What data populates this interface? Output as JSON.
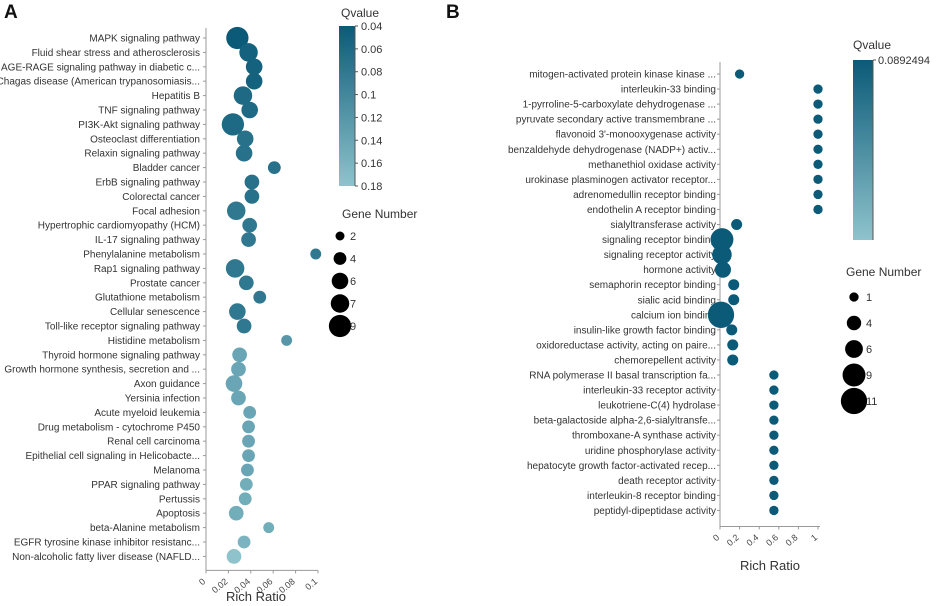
{
  "chart_data": [
    {
      "panel": "A",
      "type": "scatter",
      "xlabel": "Rich Ratio",
      "xlim": [
        0,
        0.1
      ],
      "x_ticks": [
        "0",
        "0.02",
        "0.04",
        "0.06",
        "0.08",
        "0.1"
      ],
      "qvalue_title": "Qvalue",
      "qvalue_ticks": [
        "0.04",
        "0.06",
        "0.08",
        "0.1",
        "0.12",
        "0.14",
        "0.16",
        "0.18"
      ],
      "qvalue_range": [
        0.04,
        0.18
      ],
      "size_title": "Gene Number",
      "size_legend": [
        "2",
        "4",
        "6",
        "7",
        "9"
      ],
      "points": [
        {
          "label": "MAPK signaling pathway",
          "x": 0.028,
          "size": 9,
          "q": 0.04
        },
        {
          "label": "Fluid shear stress and atherosclerosis",
          "x": 0.038,
          "size": 7,
          "q": 0.05
        },
        {
          "label": "AGE-RAGE signaling pathway in diabetic c...",
          "x": 0.043,
          "size": 6,
          "q": 0.05
        },
        {
          "label": "Chagas disease (American trypanosomiasis...",
          "x": 0.043,
          "size": 6,
          "q": 0.05
        },
        {
          "label": "Hepatitis B",
          "x": 0.033,
          "size": 7,
          "q": 0.06
        },
        {
          "label": "TNF signaling pathway",
          "x": 0.039,
          "size": 6,
          "q": 0.06
        },
        {
          "label": "PI3K-Akt signaling pathway",
          "x": 0.024,
          "size": 9,
          "q": 0.06
        },
        {
          "label": "Osteoclast differentiation",
          "x": 0.035,
          "size": 6,
          "q": 0.07
        },
        {
          "label": "Relaxin signaling pathway",
          "x": 0.034,
          "size": 6,
          "q": 0.07
        },
        {
          "label": "Bladder cancer",
          "x": 0.061,
          "size": 4,
          "q": 0.07
        },
        {
          "label": "ErbB signaling pathway",
          "x": 0.041,
          "size": 5,
          "q": 0.07
        },
        {
          "label": "Colorectal cancer",
          "x": 0.041,
          "size": 5,
          "q": 0.07
        },
        {
          "label": "Focal adhesion",
          "x": 0.027,
          "size": 7,
          "q": 0.08
        },
        {
          "label": "Hypertrophic cardiomyopathy (HCM)",
          "x": 0.039,
          "size": 5,
          "q": 0.08
        },
        {
          "label": "IL-17 signaling pathway",
          "x": 0.038,
          "size": 5,
          "q": 0.08
        },
        {
          "label": "Phenylalanine metabolism",
          "x": 0.098,
          "size": 3,
          "q": 0.08
        },
        {
          "label": "Rap1 signaling pathway",
          "x": 0.026,
          "size": 7,
          "q": 0.08
        },
        {
          "label": "Prostate cancer",
          "x": 0.036,
          "size": 5,
          "q": 0.08
        },
        {
          "label": "Glutathione metabolism",
          "x": 0.048,
          "size": 4,
          "q": 0.08
        },
        {
          "label": "Cellular senescence",
          "x": 0.028,
          "size": 6,
          "q": 0.08
        },
        {
          "label": "Toll-like receptor signaling pathway",
          "x": 0.034,
          "size": 5,
          "q": 0.08
        },
        {
          "label": "Histidine metabolism",
          "x": 0.072,
          "size": 3,
          "q": 0.12
        },
        {
          "label": "Thyroid hormone signaling pathway",
          "x": 0.03,
          "size": 5,
          "q": 0.14
        },
        {
          "label": "Growth hormone synthesis, secretion and ...",
          "x": 0.029,
          "size": 5,
          "q": 0.14
        },
        {
          "label": "Axon guidance",
          "x": 0.025,
          "size": 6,
          "q": 0.14
        },
        {
          "label": "Yersinia infection",
          "x": 0.029,
          "size": 5,
          "q": 0.14
        },
        {
          "label": "Acute myeloid leukemia",
          "x": 0.039,
          "size": 4,
          "q": 0.14
        },
        {
          "label": "Drug metabolism - cytochrome P450",
          "x": 0.038,
          "size": 4,
          "q": 0.14
        },
        {
          "label": "Renal cell carcinoma",
          "x": 0.038,
          "size": 4,
          "q": 0.14
        },
        {
          "label": "Epithelial cell signaling in Helicobacte...",
          "x": 0.038,
          "size": 4,
          "q": 0.14
        },
        {
          "label": "Melanoma",
          "x": 0.037,
          "size": 4,
          "q": 0.14
        },
        {
          "label": "PPAR signaling pathway",
          "x": 0.036,
          "size": 4,
          "q": 0.15
        },
        {
          "label": "Pertussis",
          "x": 0.035,
          "size": 4,
          "q": 0.15
        },
        {
          "label": "Apoptosis",
          "x": 0.027,
          "size": 5,
          "q": 0.15
        },
        {
          "label": "beta-Alanine metabolism",
          "x": 0.056,
          "size": 3,
          "q": 0.15
        },
        {
          "label": "EGFR tyrosine kinase inhibitor resistanc...",
          "x": 0.034,
          "size": 4,
          "q": 0.16
        },
        {
          "label": "Non-alcoholic fatty liver disease (NAFLD...",
          "x": 0.025,
          "size": 5,
          "q": 0.18
        }
      ]
    },
    {
      "panel": "B",
      "type": "scatter",
      "xlabel": "Rich Ratio",
      "xlim": [
        0,
        1
      ],
      "x_ticks": [
        "0",
        "0.2",
        "0.4",
        "0.6",
        "0.8",
        "1"
      ],
      "qvalue_title": "Qvalue",
      "qvalue_ticks": [
        "0.0892494"
      ],
      "qvalue_range": [
        0.05,
        0.0892494
      ],
      "size_title": "Gene Number",
      "size_legend": [
        "1",
        "4",
        "6",
        "9",
        "11"
      ],
      "points": [
        {
          "label": "mitogen-activated protein kinase kinase ...",
          "x": 0.2,
          "size": 1,
          "q": 0.089
        },
        {
          "label": "interleukin-33 binding",
          "x": 1.0,
          "size": 1,
          "q": 0.089
        },
        {
          "label": "1-pyrroline-5-carboxylate dehydrogenase ...",
          "x": 1.0,
          "size": 1,
          "q": 0.089
        },
        {
          "label": "pyruvate secondary active transmembrane ...",
          "x": 1.0,
          "size": 1,
          "q": 0.089
        },
        {
          "label": "flavonoid 3'-monooxygenase activity",
          "x": 1.0,
          "size": 1,
          "q": 0.089
        },
        {
          "label": "benzaldehyde dehydrogenase (NADP+) activ...",
          "x": 1.0,
          "size": 1,
          "q": 0.089
        },
        {
          "label": "methanethiol oxidase activity",
          "x": 1.0,
          "size": 1,
          "q": 0.089
        },
        {
          "label": "urokinase plasminogen activator receptor...",
          "x": 1.0,
          "size": 1,
          "q": 0.089
        },
        {
          "label": "adrenomedullin receptor binding",
          "x": 1.0,
          "size": 1,
          "q": 0.089
        },
        {
          "label": "endothelin A receptor binding",
          "x": 1.0,
          "size": 1,
          "q": 0.089
        },
        {
          "label": "sialyltransferase activity",
          "x": 0.17,
          "size": 2,
          "q": 0.089
        },
        {
          "label": "signaling receptor binding",
          "x": 0.02,
          "size": 9,
          "q": 0.089
        },
        {
          "label": "signaling receptor activity",
          "x": 0.02,
          "size": 7,
          "q": 0.089
        },
        {
          "label": "hormone activity",
          "x": 0.03,
          "size": 5,
          "q": 0.089
        },
        {
          "label": "semaphorin receptor binding",
          "x": 0.14,
          "size": 2,
          "q": 0.089
        },
        {
          "label": "sialic acid binding",
          "x": 0.14,
          "size": 2,
          "q": 0.089
        },
        {
          "label": "calcium ion binding",
          "x": 0.01,
          "size": 11,
          "q": 0.089
        },
        {
          "label": "insulin-like growth factor binding",
          "x": 0.12,
          "size": 2,
          "q": 0.089
        },
        {
          "label": "oxidoreductase activity, acting on paire...",
          "x": 0.13,
          "size": 2,
          "q": 0.089
        },
        {
          "label": "chemorepellent activity",
          "x": 0.13,
          "size": 2,
          "q": 0.089
        },
        {
          "label": "RNA polymerase II basal transcription fa...",
          "x": 0.55,
          "size": 1,
          "q": 0.089
        },
        {
          "label": "interleukin-33 receptor activity",
          "x": 0.55,
          "size": 1,
          "q": 0.089
        },
        {
          "label": "leukotriene-C(4) hydrolase",
          "x": 0.55,
          "size": 1,
          "q": 0.089
        },
        {
          "label": "beta-galactoside alpha-2,6-sialyltransfe...",
          "x": 0.55,
          "size": 1,
          "q": 0.089
        },
        {
          "label": "thromboxane-A synthase activity",
          "x": 0.55,
          "size": 1,
          "q": 0.089
        },
        {
          "label": "uridine phosphorylase activity",
          "x": 0.55,
          "size": 1,
          "q": 0.089
        },
        {
          "label": "hepatocyte growth factor-activated recep...",
          "x": 0.55,
          "size": 1,
          "q": 0.089
        },
        {
          "label": "death receptor activity",
          "x": 0.55,
          "size": 1,
          "q": 0.089
        },
        {
          "label": "interleukin-8 receptor binding",
          "x": 0.55,
          "size": 1,
          "q": 0.089
        },
        {
          "label": "peptidyl-dipeptidase activity",
          "x": 0.55,
          "size": 1,
          "q": 0.089
        }
      ]
    }
  ],
  "colors": {
    "q_low": "#0b5a78",
    "q_high": "#8ec3cc",
    "axis": "#999999"
  }
}
